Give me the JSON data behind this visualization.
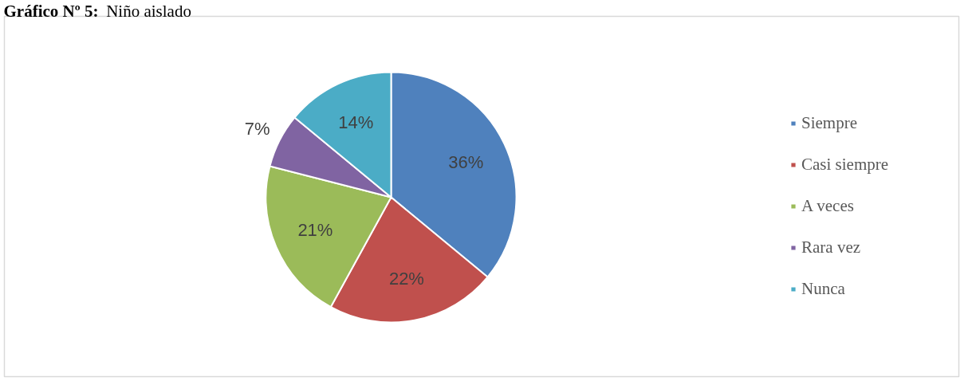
{
  "chart_data": {
    "type": "pie",
    "title": "Gráfico Nº 5: Niño aislado",
    "categories": [
      "Siempre",
      "Casi siempre",
      "A veces",
      "Rara vez",
      "Nunca"
    ],
    "values": [
      36,
      22,
      21,
      7,
      14
    ],
    "colors": [
      "#4f81bd",
      "#c0504d",
      "#9bbb59",
      "#8064a2",
      "#4bacc6"
    ],
    "value_labels": [
      "36%",
      "22%",
      "21%",
      "7%",
      "14%"
    ],
    "legend": "right"
  }
}
